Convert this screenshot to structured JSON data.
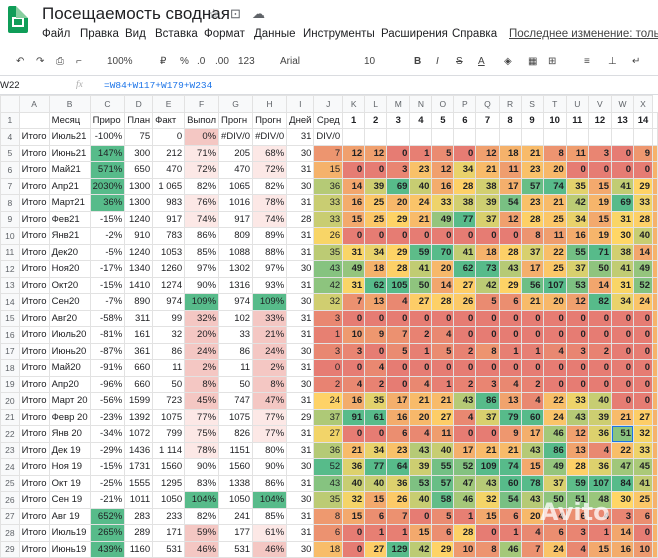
{
  "app": {
    "title": "Посещаемость сводная",
    "menu": [
      "Файл",
      "Правка",
      "Вид",
      "Вставка",
      "Формат",
      "Данные",
      "Инструменты",
      "Расширения",
      "Справка"
    ],
    "last_edit": "Последнее изменение: только"
  },
  "toolbar": {
    "zoom": "100%",
    "currency": "₽",
    "percent": "%",
    "decimals_down": ".0",
    "decimals_up": ".00",
    "format": "123",
    "font": "Arial",
    "font_size": "10",
    "bold": "B",
    "italic": "I",
    "strike": "S",
    "text_color": "A"
  },
  "formula_bar": {
    "cell_ref": "W22",
    "fx": "fx",
    "formula": "=W84+W117+W179+W234"
  },
  "watermark": "Avito",
  "columns": [
    "A",
    "B",
    "C",
    "D",
    "E",
    "F",
    "G",
    "H",
    "I",
    "J",
    "K",
    "L",
    "M",
    "N",
    "O",
    "P",
    "Q",
    "R",
    "S",
    "T",
    "U",
    "V",
    "W",
    "X"
  ],
  "rows": [
    {
      "r": "1",
      "cells": [
        "",
        "Месяц",
        "Приро",
        "План",
        "Факт",
        "Выпол",
        "Прогн",
        "Прогн",
        "Дней",
        "Сред",
        "1",
        "2",
        "3",
        "4",
        "5",
        "6",
        "7",
        "8",
        "9",
        "10",
        "11",
        "12",
        "13",
        "14"
      ]
    },
    {
      "r": "4",
      "cells": [
        "Итого",
        "Июль21",
        "-100%",
        "75",
        "0",
        "0%",
        "#DIV/0",
        "#DIV/0",
        "31",
        "DIV/0",
        "",
        "",
        "",
        "",
        "",
        "",
        "",
        "",
        "",
        "",
        "",
        "",
        "",
        ""
      ]
    },
    {
      "r": "5",
      "cells": [
        "Итого",
        "Июнь21",
        "147%",
        "300",
        "212",
        "71%",
        "205",
        "68%",
        "30",
        "7",
        "12",
        "12",
        "0",
        "1",
        "5",
        "0",
        "12",
        "18",
        "21",
        "8",
        "11",
        "3",
        "0",
        "9"
      ]
    },
    {
      "r": "6",
      "cells": [
        "Итого",
        "Май21",
        "571%",
        "650",
        "470",
        "72%",
        "470",
        "72%",
        "31",
        "15",
        "0",
        "0",
        "3",
        "23",
        "12",
        "34",
        "21",
        "11",
        "23",
        "20",
        "0",
        "0",
        "0",
        "0"
      ]
    },
    {
      "r": "7",
      "cells": [
        "Итого",
        "Апр21",
        "2030%",
        "1300",
        "1 065",
        "82%",
        "1065",
        "82%",
        "30",
        "36",
        "14",
        "39",
        "69",
        "40",
        "16",
        "28",
        "38",
        "17",
        "57",
        "74",
        "35",
        "15",
        "41",
        "29"
      ]
    },
    {
      "r": "8",
      "cells": [
        "Итого",
        "Март21",
        "36%",
        "1300",
        "983",
        "76%",
        "1016",
        "78%",
        "31",
        "33",
        "16",
        "25",
        "20",
        "24",
        "33",
        "38",
        "39",
        "54",
        "23",
        "21",
        "42",
        "19",
        "69",
        "33"
      ]
    },
    {
      "r": "9",
      "cells": [
        "Итого",
        "Фев21",
        "-15%",
        "1240",
        "917",
        "74%",
        "917",
        "74%",
        "28",
        "33",
        "15",
        "25",
        "29",
        "21",
        "49",
        "77",
        "37",
        "12",
        "28",
        "25",
        "34",
        "15",
        "31",
        "28"
      ]
    },
    {
      "r": "10",
      "cells": [
        "Итого",
        "Янв21",
        "-2%",
        "910",
        "783",
        "86%",
        "809",
        "89%",
        "31",
        "26",
        "0",
        "0",
        "0",
        "0",
        "0",
        "0",
        "0",
        "0",
        "8",
        "11",
        "16",
        "19",
        "30",
        "40"
      ]
    },
    {
      "r": "11",
      "cells": [
        "Итого",
        "Дек20",
        "-5%",
        "1240",
        "1053",
        "85%",
        "1088",
        "88%",
        "31",
        "35",
        "31",
        "34",
        "29",
        "59",
        "70",
        "41",
        "18",
        "28",
        "37",
        "22",
        "55",
        "71",
        "38",
        "14"
      ]
    },
    {
      "r": "12",
      "cells": [
        "Итого",
        "Ноя20",
        "-17%",
        "1340",
        "1260",
        "97%",
        "1302",
        "97%",
        "30",
        "43",
        "49",
        "18",
        "28",
        "41",
        "20",
        "62",
        "73",
        "43",
        "17",
        "25",
        "37",
        "50",
        "41",
        "49"
      ]
    },
    {
      "r": "13",
      "cells": [
        "Итого",
        "Окт20",
        "-15%",
        "1410",
        "1274",
        "90%",
        "1316",
        "93%",
        "31",
        "42",
        "31",
        "62",
        "105",
        "50",
        "14",
        "27",
        "42",
        "29",
        "56",
        "107",
        "53",
        "14",
        "31",
        "52"
      ]
    },
    {
      "r": "14",
      "cells": [
        "Итого",
        "Сен20",
        "-7%",
        "890",
        "974",
        "109%",
        "974",
        "109%",
        "30",
        "32",
        "7",
        "13",
        "4",
        "27",
        "28",
        "26",
        "5",
        "6",
        "21",
        "20",
        "12",
        "82",
        "34",
        "24"
      ]
    },
    {
      "r": "15",
      "cells": [
        "Итого",
        "Авг20",
        "-58%",
        "311",
        "99",
        "32%",
        "102",
        "33%",
        "31",
        "3",
        "0",
        "0",
        "0",
        "0",
        "0",
        "0",
        "0",
        "0",
        "0",
        "0",
        "0",
        "0",
        "0",
        "0"
      ]
    },
    {
      "r": "16",
      "cells": [
        "Итого",
        "Июль20",
        "-81%",
        "161",
        "32",
        "20%",
        "33",
        "21%",
        "31",
        "1",
        "10",
        "9",
        "7",
        "2",
        "4",
        "0",
        "0",
        "0",
        "0",
        "0",
        "0",
        "0",
        "0",
        "0"
      ]
    },
    {
      "r": "17",
      "cells": [
        "Итого",
        "Июнь20",
        "-87%",
        "361",
        "86",
        "24%",
        "86",
        "24%",
        "30",
        "3",
        "3",
        "0",
        "5",
        "1",
        "5",
        "2",
        "8",
        "1",
        "1",
        "4",
        "3",
        "2",
        "0",
        "0"
      ]
    },
    {
      "r": "18",
      "cells": [
        "Итого",
        "Май20",
        "-91%",
        "660",
        "11",
        "2%",
        "11",
        "2%",
        "31",
        "0",
        "0",
        "4",
        "0",
        "0",
        "0",
        "0",
        "0",
        "0",
        "0",
        "0",
        "0",
        "0",
        "0",
        "0"
      ]
    },
    {
      "r": "19",
      "cells": [
        "Итого",
        "Апр20",
        "-96%",
        "660",
        "50",
        "8%",
        "50",
        "8%",
        "30",
        "2",
        "4",
        "2",
        "0",
        "4",
        "1",
        "2",
        "3",
        "4",
        "2",
        "0",
        "0",
        "0",
        "0",
        "0"
      ]
    },
    {
      "r": "20",
      "cells": [
        "Итого",
        "Март 20",
        "-56%",
        "1599",
        "723",
        "45%",
        "747",
        "47%",
        "31",
        "24",
        "16",
        "35",
        "17",
        "21",
        "21",
        "43",
        "86",
        "13",
        "4",
        "22",
        "33",
        "40",
        "0",
        "0"
      ]
    },
    {
      "r": "21",
      "cells": [
        "Итого",
        "Февр 20",
        "-23%",
        "1392",
        "1075",
        "77%",
        "1075",
        "77%",
        "29",
        "37",
        "91",
        "61",
        "16",
        "20",
        "27",
        "4",
        "37",
        "79",
        "60",
        "24",
        "43",
        "39",
        "21",
        "27"
      ]
    },
    {
      "r": "22",
      "cells": [
        "Итого",
        "Янв 20",
        "-34%",
        "1072",
        "799",
        "75%",
        "826",
        "77%",
        "31",
        "27",
        "0",
        "0",
        "6",
        "4",
        "11",
        "0",
        "0",
        "9",
        "17",
        "46",
        "12",
        "36",
        "51",
        "32"
      ]
    },
    {
      "r": "23",
      "cells": [
        "Итого",
        "Дек 19",
        "-29%",
        "1436",
        "1 114",
        "78%",
        "1151",
        "80%",
        "31",
        "36",
        "21",
        "34",
        "23",
        "43",
        "40",
        "17",
        "21",
        "21",
        "43",
        "86",
        "13",
        "4",
        "22",
        "33"
      ]
    },
    {
      "r": "24",
      "cells": [
        "Итого",
        "Ноя 19",
        "-15%",
        "1731",
        "1560",
        "90%",
        "1560",
        "90%",
        "30",
        "52",
        "36",
        "77",
        "64",
        "39",
        "55",
        "52",
        "109",
        "74",
        "15",
        "49",
        "28",
        "36",
        "47",
        "45"
      ]
    },
    {
      "r": "25",
      "cells": [
        "Итого",
        "Окт 19",
        "-25%",
        "1555",
        "1295",
        "83%",
        "1338",
        "86%",
        "31",
        "43",
        "40",
        "40",
        "36",
        "53",
        "57",
        "47",
        "43",
        "60",
        "78",
        "37",
        "59",
        "107",
        "84",
        "41"
      ]
    },
    {
      "r": "26",
      "cells": [
        "Итого",
        "Сен 19",
        "-21%",
        "1011",
        "1050",
        "104%",
        "1050",
        "104%",
        "30",
        "35",
        "32",
        "15",
        "26",
        "40",
        "58",
        "46",
        "32",
        "54",
        "43",
        "50",
        "51",
        "48",
        "30",
        "25"
      ]
    },
    {
      "r": "27",
      "cells": [
        "Итого",
        "Авг 19",
        "652%",
        "283",
        "233",
        "82%",
        "241",
        "85%",
        "31",
        "8",
        "15",
        "6",
        "7",
        "0",
        "5",
        "1",
        "15",
        "6",
        "20",
        "4",
        "6",
        "4",
        "3",
        "6"
      ]
    },
    {
      "r": "28",
      "cells": [
        "Итого",
        "Июль19",
        "265%",
        "289",
        "171",
        "59%",
        "177",
        "61%",
        "31",
        "6",
        "0",
        "1",
        "1",
        "15",
        "6",
        "28",
        "0",
        "1",
        "4",
        "6",
        "3",
        "1",
        "14",
        "0"
      ]
    },
    {
      "r": "29",
      "cells": [
        "Итого",
        "Июнь19",
        "439%",
        "1160",
        "531",
        "46%",
        "531",
        "46%",
        "30",
        "18",
        "0",
        "27",
        "129",
        "42",
        "29",
        "10",
        "8",
        "46",
        "7",
        "24",
        "4",
        "15",
        "16",
        "10"
      ]
    }
  ]
}
